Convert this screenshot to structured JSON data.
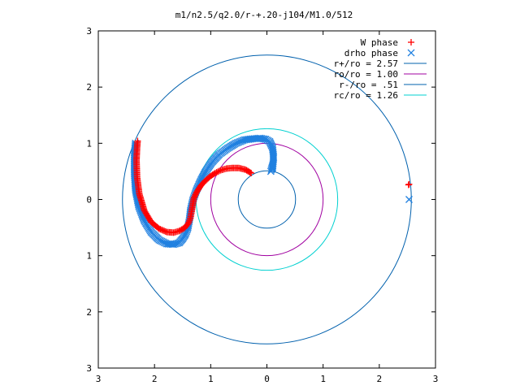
{
  "chart_data": {
    "type": "scatter",
    "title": "m1/n2.5/q2.0/r-+.20-j104/M1.0/512",
    "xlabel": "",
    "ylabel": "",
    "xlim": [
      -3,
      3
    ],
    "ylim": [
      -3,
      3
    ],
    "grid": false,
    "legend_position": "top-right",
    "x_tick_labels": [
      "3",
      "2",
      "1",
      "0",
      "1",
      "2",
      "3"
    ],
    "y_tick_labels": [
      "3",
      "2",
      "1",
      "0",
      "1",
      "2",
      "3"
    ],
    "circles": [
      {
        "name": "r+/ro = 2.57",
        "radius": 2.57,
        "color": "#0060ad"
      },
      {
        "name": "ro/ro = 1.00",
        "radius": 1.0,
        "color": "#a000a0"
      },
      {
        "name": "r-/ro = .51",
        "radius": 0.51,
        "color": "#0060ad"
      },
      {
        "name": "rc/ro = 1.26",
        "radius": 1.26,
        "color": "#00d0d0"
      }
    ],
    "series": [
      {
        "name": "W phase",
        "marker": "+",
        "color": "#ff0000",
        "x": [
          -0.28,
          -0.38,
          -0.5,
          -0.62,
          -0.72,
          -0.82,
          -0.92,
          -1.01,
          -1.1,
          -1.18,
          -1.25,
          -1.3,
          -1.32,
          -1.34,
          -1.36,
          -1.4,
          -1.47,
          -1.56,
          -1.66,
          -1.78,
          -1.92,
          -2.06,
          -2.18,
          -2.27,
          -2.31,
          -2.32,
          -2.31,
          -2.3,
          2.53,
          2.52
        ],
        "y": [
          0.47,
          0.53,
          0.56,
          0.56,
          0.55,
          0.52,
          0.47,
          0.41,
          0.33,
          0.24,
          0.13,
          0.02,
          -0.1,
          -0.22,
          -0.33,
          -0.43,
          -0.51,
          -0.56,
          -0.59,
          -0.58,
          -0.52,
          -0.4,
          -0.2,
          0.1,
          0.4,
          0.7,
          0.92,
          1.04,
          0.27,
          0.26
        ]
      },
      {
        "name": "drho phase",
        "marker": "x",
        "color": "#2080e0",
        "x": [
          0.1,
          0.12,
          0.1,
          0.05,
          -0.02,
          -0.12,
          -0.25,
          -0.4,
          -0.55,
          -0.7,
          -0.85,
          -0.98,
          -1.09,
          -1.18,
          -1.26,
          -1.32,
          -1.36,
          -1.38,
          -1.41,
          -1.45,
          -1.5,
          -1.56,
          -1.66,
          -1.78,
          -1.92,
          -2.06,
          -2.18,
          -2.28,
          -2.34,
          -2.36,
          -2.36,
          -2.34,
          0.1,
          0.07,
          2.53
        ],
        "y": [
          0.55,
          0.75,
          0.92,
          1.03,
          1.07,
          1.09,
          1.08,
          1.06,
          1.0,
          0.91,
          0.8,
          0.66,
          0.5,
          0.33,
          0.15,
          -0.02,
          -0.2,
          -0.37,
          -0.52,
          -0.62,
          -0.7,
          -0.77,
          -0.8,
          -0.79,
          -0.72,
          -0.58,
          -0.38,
          -0.12,
          0.18,
          0.48,
          0.78,
          1.0,
          0.6,
          0.5,
          0.0
        ]
      }
    ]
  }
}
